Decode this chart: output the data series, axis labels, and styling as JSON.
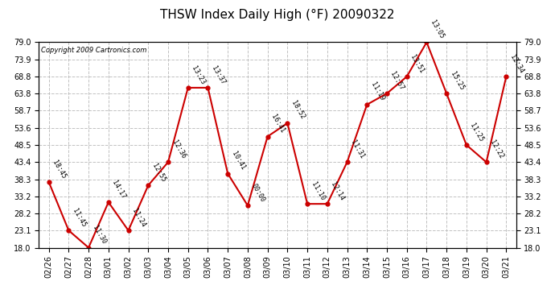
{
  "title": "THSW Index Daily High (°F) 20090322",
  "copyright": "Copyright 2009 Cartronics.com",
  "x_labels": [
    "02/26",
    "02/27",
    "02/28",
    "03/01",
    "03/02",
    "03/03",
    "03/04",
    "03/05",
    "03/06",
    "03/07",
    "03/08",
    "03/09",
    "03/10",
    "03/11",
    "03/12",
    "03/13",
    "03/14",
    "03/15",
    "03/16",
    "03/17",
    "03/18",
    "03/19",
    "03/20",
    "03/21"
  ],
  "y_values": [
    37.5,
    23.1,
    18.0,
    31.5,
    23.1,
    36.5,
    43.4,
    65.5,
    65.5,
    40.0,
    30.5,
    51.0,
    55.0,
    31.0,
    31.0,
    43.4,
    60.5,
    63.8,
    68.8,
    79.0,
    63.8,
    48.5,
    43.4,
    68.8
  ],
  "time_labels": [
    "18:45",
    "11:45",
    "11:30",
    "14:17",
    "11:24",
    "12:55",
    "12:36",
    "13:23",
    "13:37",
    "10:41",
    "00:00",
    "16:41",
    "18:52",
    "11:10",
    "12:14",
    "11:31",
    "11:19",
    "12:57",
    "13:51",
    "13:05",
    "15:25",
    "11:25",
    "12:22",
    "12:34"
  ],
  "ylim": [
    18.0,
    79.0
  ],
  "yticks": [
    18.0,
    23.1,
    28.2,
    33.2,
    38.3,
    43.4,
    48.5,
    53.6,
    58.7,
    63.8,
    68.8,
    73.9,
    79.0
  ],
  "line_color": "#cc0000",
  "marker_color": "#cc0000",
  "bg_color": "#ffffff",
  "grid_color": "#bbbbbb",
  "title_fontsize": 11,
  "tick_fontsize": 7,
  "annot_fontsize": 6,
  "copyright_fontsize": 6
}
